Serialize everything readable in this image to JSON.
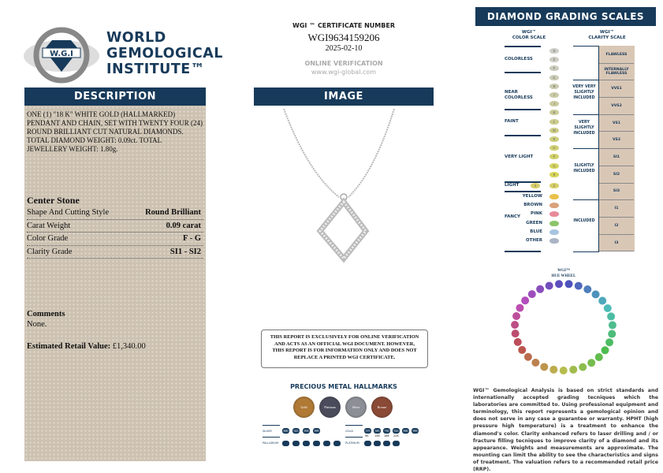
{
  "logo": {
    "seal_text": "WORLD GEMOLOGICAL INSTITUTE W.G.I",
    "name_lines": [
      "WORLD",
      "GEMOLOGICAL",
      "INSTITUTE™"
    ]
  },
  "description": {
    "header": "DESCRIPTION",
    "text": "ONE (1) \"18 K\" WHITE GOLD (HALLMARKED) PENDANT AND CHAIN, SET WITH TWENTY FOUR (24) ROUND BRILLIANT CUT NATURAL DIAMONDS. TOTAL DIAMOND WEIGHT: 0.09ct. TOTAL JEWELLERY WEIGHT: 1.80g.",
    "center_stone_title": "Center Stone",
    "rows": [
      {
        "label": "Shape And Cutting Style",
        "value": "Round Brilliant"
      },
      {
        "label": "Carat Weight",
        "value": "0.09 carat"
      },
      {
        "label": "Color Grade",
        "value": "F - G"
      },
      {
        "label": "Clarity Grade",
        "value": "SI1 - SI2"
      }
    ],
    "comments_label": "Comments",
    "comments": "None.",
    "retail_label": "Estimated Retail Value:",
    "retail_value": "£1,340.00"
  },
  "certificate": {
    "label": "WGI ™ CERTIFICATE NUMBER",
    "number": "WGI9634159206",
    "date": "2025-02-10",
    "verification_label": "ONLINE VERIFICATION",
    "verification_url": "www.wgi-global.com"
  },
  "image": {
    "header": "IMAGE"
  },
  "disclaimer": "THIS REPORT IS EXCLUSIVELY FOR ONLINE VERIFICATION AND ACTS AS AN OFFICIAL WGI DOCUMENT. HOWEVER, THIS REPORT IS FOR INFORMATION ONLY AND DOES NOT REPLACE A PRINTED WGI CERTIFICATE.",
  "hallmarks": {
    "title": "PRECIOUS METAL HALLMARKS",
    "coins": [
      {
        "label": "Gold",
        "color": "#b07a35"
      },
      {
        "label": "Platinum",
        "color": "#4a4c5c"
      },
      {
        "label": "Silver",
        "color": "#8c8f96"
      },
      {
        "label": "Bronze",
        "color": "#8a4a35"
      }
    ],
    "silver_label": "SILVER",
    "silver": [
      "800",
      "925",
      "958",
      "999"
    ],
    "gold_label": "GOLD",
    "gold": [
      "375",
      "585",
      "750",
      "916",
      "990",
      "999"
    ],
    "gold_karats": [
      "9K",
      "14K",
      "18K",
      "22K"
    ],
    "palladium_label": "PALLADIUM",
    "platinum_label": "PLATINUM"
  },
  "scales": {
    "header": "DIAMOND GRADING  SCALES",
    "color_title": "WGI™\nCOLOR SCALE",
    "clarity_title": "WGI™\nCLARITY SCALE",
    "color_groups": [
      "COLORLESS",
      "NEAR COLORLESS",
      "FAINT",
      "VERY LIGHT",
      "LIGHT"
    ],
    "color_grades": [
      "D",
      "E",
      "F",
      "G",
      "H",
      "I",
      "J",
      "K",
      "L",
      "M",
      "N",
      "O",
      "P",
      "Q",
      "R"
    ],
    "light_grades": [
      "S",
      "Z"
    ],
    "fancy_label": "FANCY",
    "fancy": [
      {
        "label": "YELLOW",
        "color": "#e8c04a"
      },
      {
        "label": "BROWN",
        "color": "#d9a27a"
      },
      {
        "label": "PINK",
        "color": "#e88a9a"
      },
      {
        "label": "GREEN",
        "color": "#8cc46a"
      },
      {
        "label": "BLUE",
        "color": "#a8c4e0"
      },
      {
        "label": "OTHER",
        "color": "#aab4c4"
      }
    ],
    "clarity_groups": [
      "VERY VERY SLIGHTLY INCLUDED",
      "VERY SLIGHTLY INCLUDED",
      "SLIGHTLY INCLUDED",
      "INCLUDED"
    ],
    "clarity_grades": [
      "FLAWLESS",
      "INTERNALLY FLAWLESS",
      "VVS1",
      "VVS2",
      "VS1",
      "VS2",
      "SI1",
      "SI2",
      "SI3",
      "I1",
      "I2",
      "I3"
    ]
  },
  "hue_wheel": {
    "title": "WGI™\nHUE WHEEL"
  },
  "legal": "WGI™ Gemological Analysis is based on strict standards and internationally accepted grading tecniques which the laboratories are committed to. Using professional equipment and terminology, this report represents a gemological opinion and does not serve in any case a guarantee or warranty. HPHT (high pressure high temperature) is a treatment to enhance the diamond's color. Clarity enhanced refers to laser drilling and / or fracture filling tecniques to improve clarity of a diamond and its appearance. Weights and measurements are approximate. The mounting can limit the ability to see the characteristics and signs of treatment. The valuation refers to a recommended retail price (RRP).",
  "colors": {
    "navy": "#173a5a",
    "panel": "#cdc2b1",
    "clarity_cell": "#d9c7b6"
  }
}
